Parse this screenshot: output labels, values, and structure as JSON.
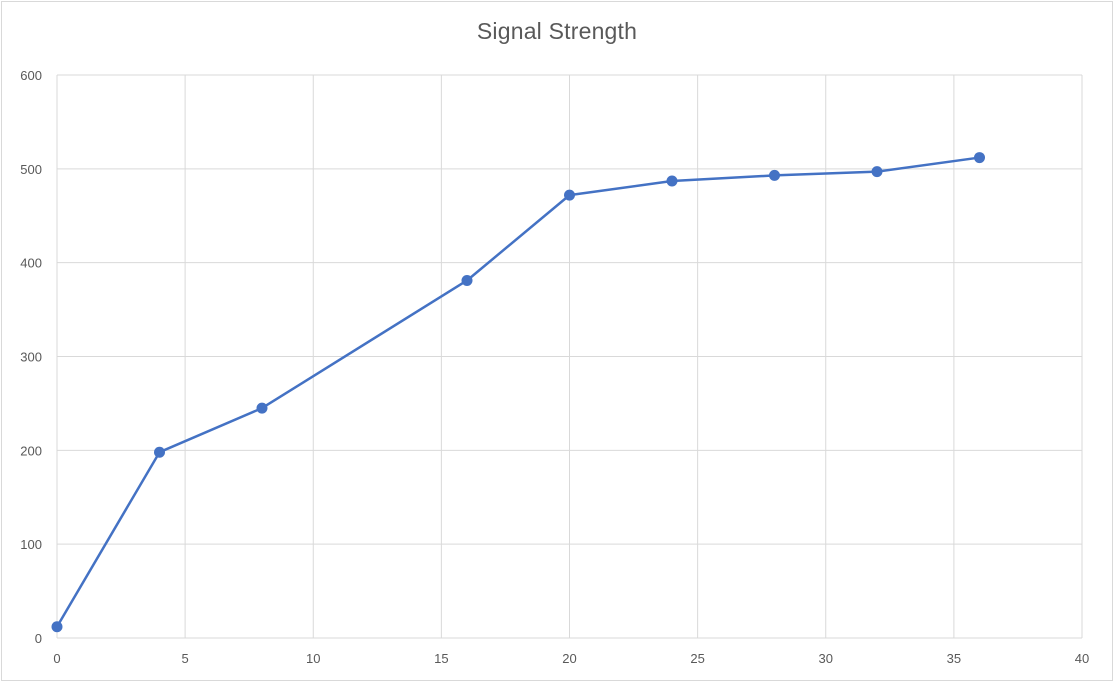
{
  "chart_data": {
    "type": "line",
    "title": "Signal Strength",
    "xlabel": "",
    "ylabel": "",
    "xlim": [
      0,
      40
    ],
    "ylim": [
      0,
      600
    ],
    "x_ticks": [
      0,
      5,
      10,
      15,
      20,
      25,
      30,
      35,
      40
    ],
    "y_ticks": [
      0,
      100,
      200,
      300,
      400,
      500,
      600
    ],
    "grid": true,
    "legend": "none",
    "series": [
      {
        "color": "#4472c4",
        "marker": "circle",
        "points": [
          {
            "x": 0,
            "y": 12
          },
          {
            "x": 4,
            "y": 198
          },
          {
            "x": 8,
            "y": 245
          },
          {
            "x": 16,
            "y": 381
          },
          {
            "x": 20,
            "y": 472
          },
          {
            "x": 24,
            "y": 487
          },
          {
            "x": 28,
            "y": 493
          },
          {
            "x": 32,
            "y": 497
          },
          {
            "x": 36,
            "y": 512
          }
        ]
      }
    ],
    "colors": {
      "grid": "#d9d9d9",
      "text": "#595959"
    }
  }
}
